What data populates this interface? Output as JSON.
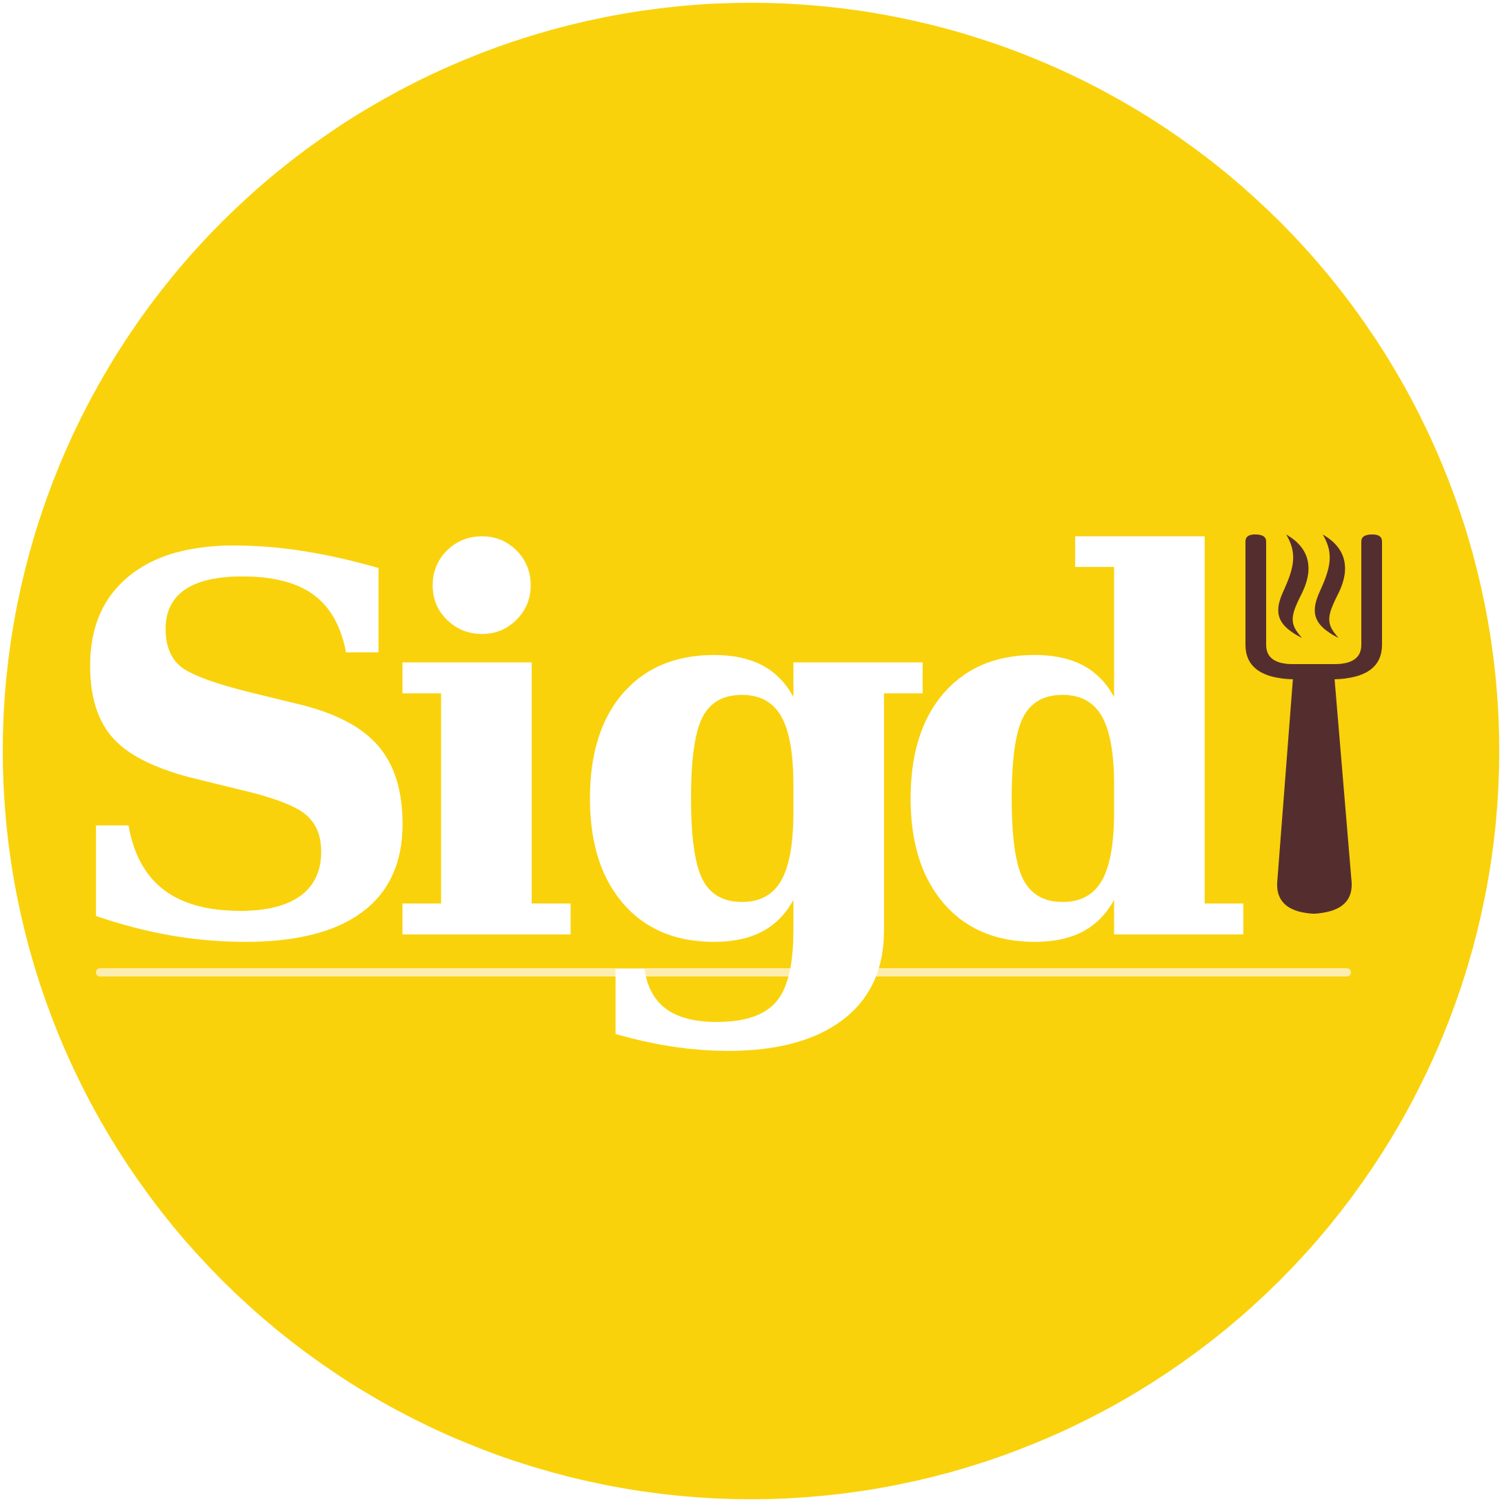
{
  "logo": {
    "brand_name": "Sigdi",
    "wordmark_letters": [
      "S",
      "i",
      "g",
      "d"
    ],
    "icon": "fork-with-steam-icon",
    "colors": {
      "background": "#ffffff",
      "disc": "#f9d20b",
      "wordmark": "#ffffff",
      "underline": "#fdeeb0",
      "fork": "#542e2e"
    }
  }
}
